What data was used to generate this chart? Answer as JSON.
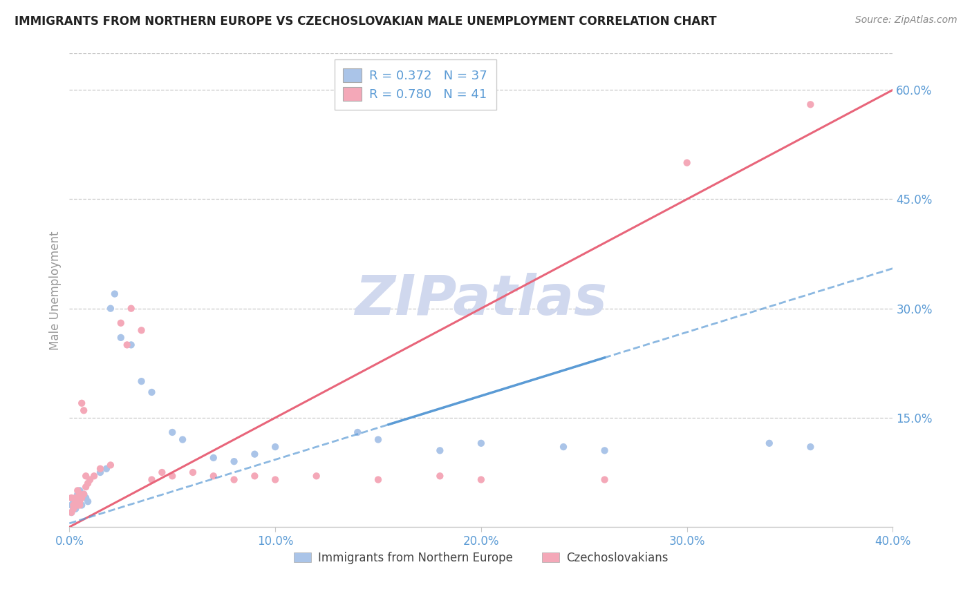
{
  "title": "IMMIGRANTS FROM NORTHERN EUROPE VS CZECHOSLOVAKIAN MALE UNEMPLOYMENT CORRELATION CHART",
  "source_text": "Source: ZipAtlas.com",
  "ylabel": "Male Unemployment",
  "xlim": [
    0.0,
    0.4
  ],
  "ylim": [
    0.0,
    0.65
  ],
  "xtick_labels": [
    "0.0%",
    "",
    "",
    "",
    "10.0%",
    "",
    "",
    "",
    "",
    "20.0%",
    "",
    "",
    "",
    "",
    "30.0%",
    "",
    "",
    "",
    "",
    "40.0%"
  ],
  "xtick_show": [
    0.0,
    0.1,
    0.2,
    0.3,
    0.4
  ],
  "xtick_show_labels": [
    "0.0%",
    "10.0%",
    "20.0%",
    "30.0%",
    "40.0%"
  ],
  "ytick_labels_right": [
    "15.0%",
    "30.0%",
    "45.0%",
    "60.0%"
  ],
  "ytick_values_right": [
    0.15,
    0.3,
    0.45,
    0.6
  ],
  "watermark": "ZIPatlas",
  "legend_entries": [
    {
      "label": "R = 0.372   N = 37",
      "color": "#aac4e8"
    },
    {
      "label": "R = 0.780   N = 41",
      "color": "#f4a8b8"
    }
  ],
  "legend_bottom": [
    {
      "label": "Immigrants from Northern Europe",
      "color": "#aac4e8"
    },
    {
      "label": "Czechoslovakians",
      "color": "#f4a8b8"
    }
  ],
  "blue_scatter": [
    [
      0.001,
      0.02
    ],
    [
      0.001,
      0.03
    ],
    [
      0.002,
      0.025
    ],
    [
      0.002,
      0.035
    ],
    [
      0.003,
      0.04
    ],
    [
      0.003,
      0.03
    ],
    [
      0.003,
      0.025
    ],
    [
      0.004,
      0.045
    ],
    [
      0.004,
      0.035
    ],
    [
      0.005,
      0.05
    ],
    [
      0.005,
      0.04
    ],
    [
      0.006,
      0.03
    ],
    [
      0.007,
      0.045
    ],
    [
      0.008,
      0.04
    ],
    [
      0.009,
      0.035
    ],
    [
      0.015,
      0.075
    ],
    [
      0.018,
      0.08
    ],
    [
      0.02,
      0.3
    ],
    [
      0.022,
      0.32
    ],
    [
      0.025,
      0.26
    ],
    [
      0.03,
      0.25
    ],
    [
      0.035,
      0.2
    ],
    [
      0.04,
      0.185
    ],
    [
      0.05,
      0.13
    ],
    [
      0.055,
      0.12
    ],
    [
      0.07,
      0.095
    ],
    [
      0.08,
      0.09
    ],
    [
      0.09,
      0.1
    ],
    [
      0.1,
      0.11
    ],
    [
      0.14,
      0.13
    ],
    [
      0.15,
      0.12
    ],
    [
      0.18,
      0.105
    ],
    [
      0.2,
      0.115
    ],
    [
      0.24,
      0.11
    ],
    [
      0.26,
      0.105
    ],
    [
      0.34,
      0.115
    ],
    [
      0.36,
      0.11
    ]
  ],
  "pink_scatter": [
    [
      0.001,
      0.02
    ],
    [
      0.001,
      0.04
    ],
    [
      0.002,
      0.025
    ],
    [
      0.002,
      0.03
    ],
    [
      0.003,
      0.035
    ],
    [
      0.003,
      0.04
    ],
    [
      0.004,
      0.05
    ],
    [
      0.004,
      0.03
    ],
    [
      0.005,
      0.045
    ],
    [
      0.005,
      0.035
    ],
    [
      0.005,
      0.03
    ],
    [
      0.006,
      0.04
    ],
    [
      0.006,
      0.17
    ],
    [
      0.007,
      0.045
    ],
    [
      0.007,
      0.16
    ],
    [
      0.008,
      0.055
    ],
    [
      0.008,
      0.07
    ],
    [
      0.009,
      0.06
    ],
    [
      0.01,
      0.065
    ],
    [
      0.012,
      0.07
    ],
    [
      0.015,
      0.08
    ],
    [
      0.02,
      0.085
    ],
    [
      0.025,
      0.28
    ],
    [
      0.028,
      0.25
    ],
    [
      0.03,
      0.3
    ],
    [
      0.035,
      0.27
    ],
    [
      0.04,
      0.065
    ],
    [
      0.045,
      0.075
    ],
    [
      0.05,
      0.07
    ],
    [
      0.06,
      0.075
    ],
    [
      0.07,
      0.07
    ],
    [
      0.08,
      0.065
    ],
    [
      0.09,
      0.07
    ],
    [
      0.1,
      0.065
    ],
    [
      0.12,
      0.07
    ],
    [
      0.15,
      0.065
    ],
    [
      0.18,
      0.07
    ],
    [
      0.2,
      0.065
    ],
    [
      0.26,
      0.065
    ],
    [
      0.3,
      0.5
    ],
    [
      0.36,
      0.58
    ]
  ],
  "blue_line_x0": 0.0,
  "blue_line_y0": 0.005,
  "blue_line_x1": 0.4,
  "blue_line_y1": 0.355,
  "blue_line_solid_x0": 0.155,
  "blue_line_solid_x1": 0.26,
  "pink_line_x0": 0.0,
  "pink_line_y0": 0.0,
  "pink_line_x1": 0.4,
  "pink_line_y1": 0.6,
  "blue_line_color": "#5b9bd5",
  "blue_scatter_color": "#aac4e8",
  "pink_line_color": "#e8657a",
  "pink_scatter_color": "#f4a8b8",
  "grid_color": "#c8c8c8",
  "background_color": "#ffffff",
  "title_color": "#222222",
  "axis_label_color": "#5b9bd5",
  "watermark_color": "#d0d8ee",
  "source_color": "#888888"
}
